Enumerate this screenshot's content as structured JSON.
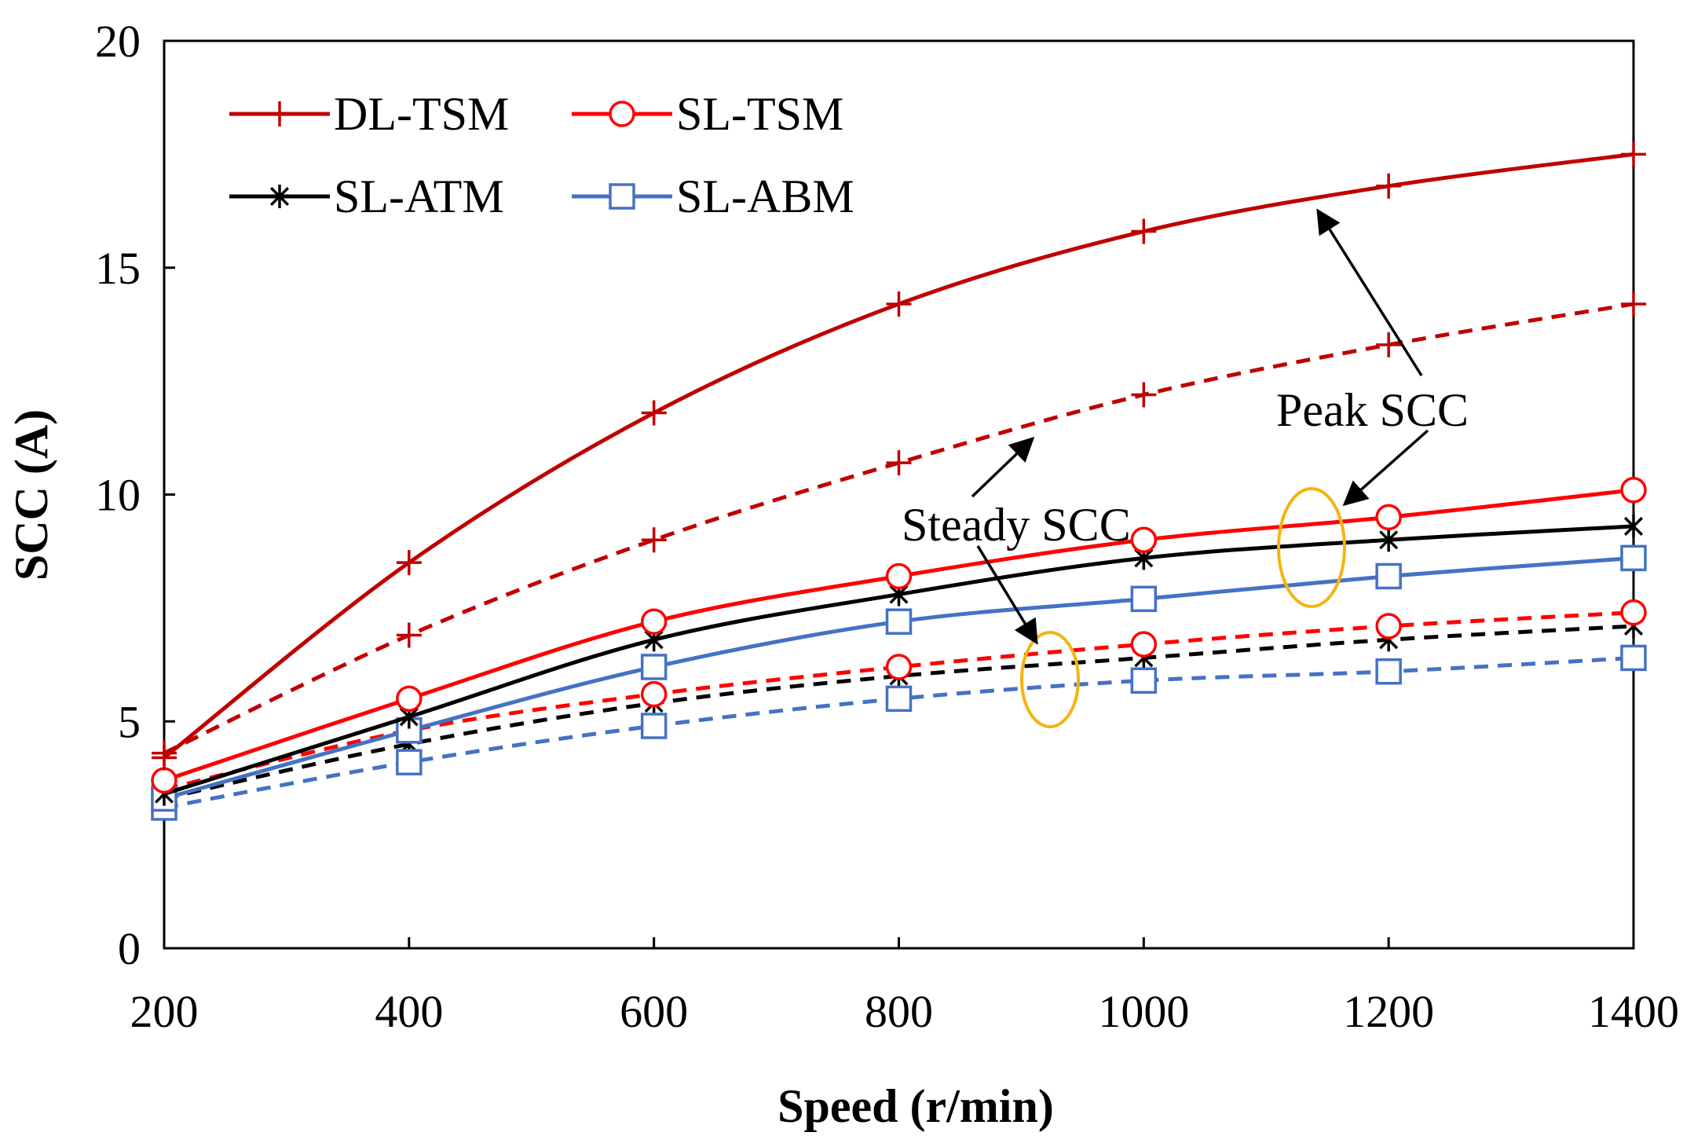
{
  "chart_data": {
    "type": "line",
    "title": "",
    "xlabel": "Speed (r/min)",
    "ylabel": "SCC (A)",
    "xlim": [
      200,
      1400
    ],
    "ylim": [
      0,
      20
    ],
    "x": [
      200,
      400,
      600,
      800,
      1000,
      1200,
      1400
    ],
    "xticks": [
      200,
      400,
      600,
      800,
      1000,
      1200,
      1400
    ],
    "yticks": [
      0,
      5,
      10,
      15,
      20
    ],
    "grid": false,
    "legend_position": "top-left",
    "series": [
      {
        "name": "DL-TSM",
        "kind": "peak",
        "color": "#c00000",
        "marker": "plus",
        "dashed": false,
        "in_legend": true,
        "values": [
          4.2,
          8.5,
          11.8,
          14.2,
          15.8,
          16.8,
          17.5
        ]
      },
      {
        "name": "SL-TSM",
        "kind": "peak",
        "color": "#ff0000",
        "marker": "circle",
        "dashed": false,
        "in_legend": true,
        "values": [
          3.7,
          5.5,
          7.2,
          8.2,
          9.0,
          9.5,
          10.1
        ]
      },
      {
        "name": "SL-ATM",
        "kind": "peak",
        "color": "#000000",
        "marker": "asterisk",
        "dashed": false,
        "in_legend": true,
        "values": [
          3.4,
          5.1,
          6.8,
          7.8,
          8.6,
          9.0,
          9.3
        ]
      },
      {
        "name": "SL-ABM",
        "kind": "peak",
        "color": "#4472c4",
        "marker": "square",
        "dashed": false,
        "in_legend": true,
        "values": [
          3.3,
          4.8,
          6.2,
          7.2,
          7.7,
          8.2,
          8.6
        ]
      },
      {
        "name": "DL-TSM",
        "kind": "steady",
        "color": "#c00000",
        "marker": "plus",
        "dashed": true,
        "in_legend": false,
        "values": [
          4.3,
          6.9,
          9.0,
          10.7,
          12.2,
          13.3,
          14.2
        ]
      },
      {
        "name": "SL-TSM",
        "kind": "steady",
        "color": "#ff0000",
        "marker": "circle",
        "dashed": true,
        "in_legend": false,
        "values": [
          3.5,
          4.8,
          5.6,
          6.2,
          6.7,
          7.1,
          7.4
        ]
      },
      {
        "name": "SL-ATM",
        "kind": "steady",
        "color": "#000000",
        "marker": "asterisk",
        "dashed": true,
        "in_legend": false,
        "values": [
          3.3,
          4.5,
          5.4,
          6.0,
          6.4,
          6.8,
          7.1
        ]
      },
      {
        "name": "SL-ABM",
        "kind": "steady",
        "color": "#4472c4",
        "marker": "square",
        "dashed": true,
        "in_legend": false,
        "values": [
          3.1,
          4.1,
          4.9,
          5.5,
          5.9,
          6.1,
          6.4
        ]
      }
    ],
    "annotations": [
      {
        "id": "peak",
        "text": "Peak SCC"
      },
      {
        "id": "steady",
        "text": "Steady SCC"
      }
    ]
  }
}
